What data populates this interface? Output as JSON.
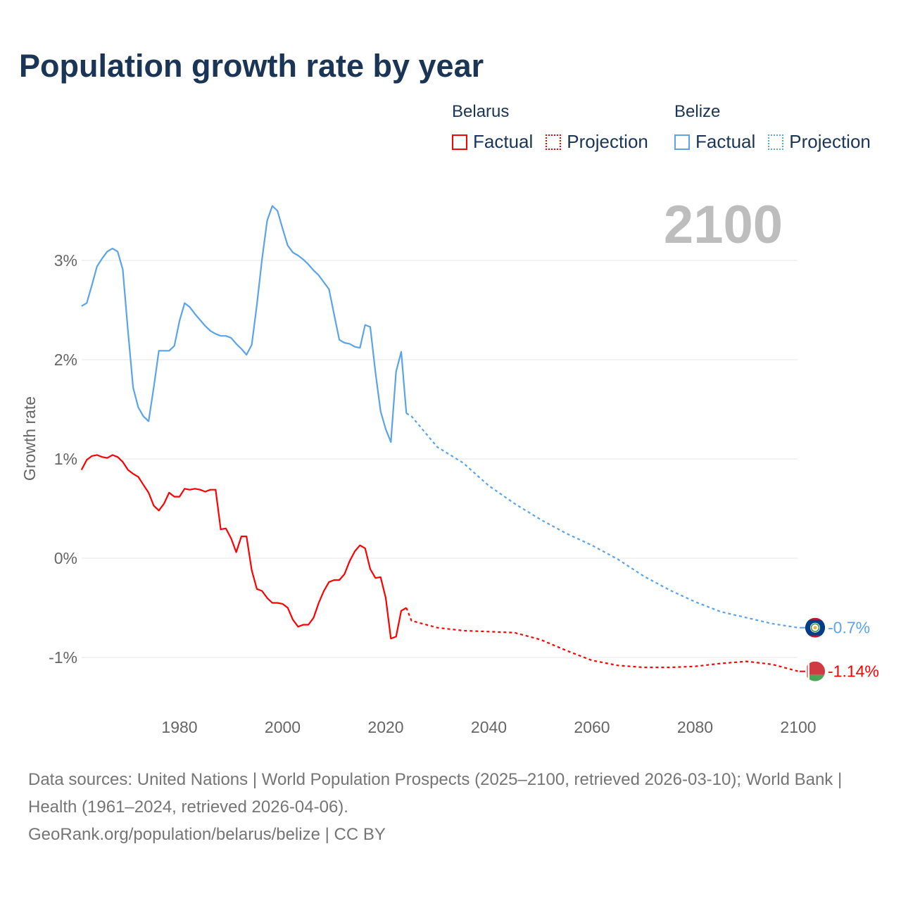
{
  "title": "Population growth rate by year",
  "year_display": "2100",
  "legend": {
    "groups": [
      {
        "country": "Belarus",
        "factual": "Factual",
        "projection": "Projection",
        "color": "#ff0000"
      },
      {
        "country": "Belize",
        "factual": "Factual",
        "projection": "Projection",
        "color": "#5aa4ea"
      }
    ]
  },
  "footer": {
    "sources": "Data sources: United Nations | World Population Prospects (2025–2100, retrieved 2026-03-10); World Bank | Health (1961–2024, retrieved 2026-04-06).",
    "credit": "GeoRank.org/population/belarus/belize | CC BY"
  },
  "chart_data": {
    "type": "line",
    "title": "Population growth rate by year",
    "ylabel": "Growth rate",
    "xlabel": "",
    "xlim": [
      1961,
      2100
    ],
    "ylim": [
      -1.5,
      3.6
    ],
    "x_ticks": [
      1980,
      2000,
      2020,
      2040,
      2060,
      2080,
      2100
    ],
    "y_ticks": [
      {
        "v": 3,
        "label": "3%"
      },
      {
        "v": 2,
        "label": "2%"
      },
      {
        "v": 1,
        "label": "1%"
      },
      {
        "v": 0,
        "label": "0%"
      },
      {
        "v": -1,
        "label": "-1%"
      }
    ],
    "grid": true,
    "series": [
      {
        "name": "Belize",
        "color": "#5aa4ea",
        "end_label": "-0.7%",
        "flag": "belize-flag",
        "factual": {
          "x": [
            1961,
            1962,
            1963,
            1964,
            1965,
            1966,
            1967,
            1968,
            1969,
            1970,
            1971,
            1972,
            1973,
            1974,
            1975,
            1976,
            1977,
            1978,
            1979,
            1980,
            1981,
            1982,
            1983,
            1984,
            1985,
            1986,
            1987,
            1988,
            1989,
            1990,
            1991,
            1992,
            1993,
            1994,
            1995,
            1996,
            1997,
            1998,
            1999,
            2000,
            2001,
            2002,
            2003,
            2004,
            2005,
            2006,
            2007,
            2008,
            2009,
            2010,
            2011,
            2012,
            2013,
            2014,
            2015,
            2016,
            2017,
            2018,
            2019,
            2020,
            2021,
            2022,
            2023,
            2024
          ],
          "y": [
            2.54,
            2.57,
            2.75,
            2.94,
            3.02,
            3.09,
            3.12,
            3.09,
            2.91,
            2.29,
            1.72,
            1.52,
            1.43,
            1.38,
            1.72,
            2.09,
            2.09,
            2.09,
            2.14,
            2.39,
            2.57,
            2.53,
            2.46,
            2.4,
            2.34,
            2.29,
            2.26,
            2.24,
            2.24,
            2.22,
            2.16,
            2.11,
            2.05,
            2.15,
            2.55,
            3.01,
            3.4,
            3.55,
            3.5,
            3.32,
            3.15,
            3.08,
            3.05,
            3.01,
            2.96,
            2.9,
            2.85,
            2.78,
            2.71,
            2.45,
            2.2,
            2.17,
            2.16,
            2.13,
            2.12,
            2.35,
            2.33,
            1.87,
            1.48,
            1.3,
            1.17,
            1.88,
            2.08,
            1.46
          ]
        },
        "projection": {
          "x": [
            2024,
            2025,
            2030,
            2035,
            2040,
            2045,
            2050,
            2055,
            2060,
            2065,
            2070,
            2075,
            2080,
            2085,
            2090,
            2095,
            2100
          ],
          "y": [
            1.46,
            1.43,
            1.12,
            0.96,
            0.73,
            0.55,
            0.39,
            0.25,
            0.13,
            -0.01,
            -0.18,
            -0.32,
            -0.44,
            -0.54,
            -0.6,
            -0.66,
            -0.7
          ]
        }
      },
      {
        "name": "Belarus",
        "color": "#ff0000",
        "end_label": "-1.14%",
        "flag": "belarus-flag",
        "factual": {
          "x": [
            1961,
            1962,
            1963,
            1964,
            1965,
            1966,
            1967,
            1968,
            1969,
            1970,
            1971,
            1972,
            1973,
            1974,
            1975,
            1976,
            1977,
            1978,
            1979,
            1980,
            1981,
            1982,
            1983,
            1984,
            1985,
            1986,
            1987,
            1988,
            1989,
            1990,
            1991,
            1992,
            1993,
            1994,
            1995,
            1996,
            1997,
            1998,
            1999,
            2000,
            2001,
            2002,
            2003,
            2004,
            2005,
            2006,
            2007,
            2008,
            2009,
            2010,
            2011,
            2012,
            2013,
            2014,
            2015,
            2016,
            2017,
            2018,
            2019,
            2020,
            2021,
            2022,
            2023,
            2024
          ],
          "y": [
            0.89,
            0.99,
            1.03,
            1.04,
            1.02,
            1.01,
            1.04,
            1.02,
            0.97,
            0.89,
            0.85,
            0.82,
            0.74,
            0.66,
            0.53,
            0.48,
            0.55,
            0.66,
            0.62,
            0.62,
            0.7,
            0.69,
            0.7,
            0.69,
            0.67,
            0.69,
            0.69,
            0.29,
            0.3,
            0.2,
            0.06,
            0.22,
            0.22,
            -0.12,
            -0.31,
            -0.33,
            -0.4,
            -0.45,
            -0.45,
            -0.46,
            -0.5,
            -0.62,
            -0.69,
            -0.67,
            -0.67,
            -0.6,
            -0.45,
            -0.33,
            -0.24,
            -0.22,
            -0.22,
            -0.16,
            -0.03,
            0.07,
            0.13,
            0.1,
            -0.11,
            -0.2,
            -0.19,
            -0.4,
            -0.81,
            -0.79,
            -0.53,
            -0.5
          ]
        },
        "projection": {
          "x": [
            2024,
            2025,
            2030,
            2035,
            2040,
            2045,
            2050,
            2055,
            2060,
            2065,
            2070,
            2075,
            2080,
            2085,
            2090,
            2095,
            2100
          ],
          "y": [
            -0.5,
            -0.63,
            -0.7,
            -0.73,
            -0.74,
            -0.75,
            -0.82,
            -0.93,
            -1.03,
            -1.08,
            -1.1,
            -1.1,
            -1.09,
            -1.06,
            -1.04,
            -1.07,
            -1.14
          ]
        }
      }
    ]
  }
}
